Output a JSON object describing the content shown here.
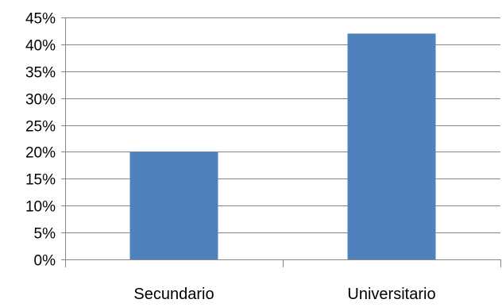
{
  "chart_data": {
    "type": "bar",
    "categories": [
      "Secundario",
      "Universitario"
    ],
    "values": [
      0.2,
      0.42
    ],
    "ylim": [
      0,
      0.45
    ],
    "ytick_values": [
      0,
      0.05,
      0.1,
      0.15,
      0.2,
      0.25,
      0.3,
      0.35,
      0.4,
      0.45
    ],
    "ytick_labels": [
      "0%",
      "5%",
      "10%",
      "15%",
      "20%",
      "25%",
      "30%",
      "35%",
      "40%",
      "45%"
    ],
    "grid": true,
    "legend": "none",
    "title": "",
    "xlabel": "",
    "ylabel": ""
  },
  "colors": {
    "bar": "#4f81bd",
    "grid": "#868686",
    "axis": "#868686"
  }
}
